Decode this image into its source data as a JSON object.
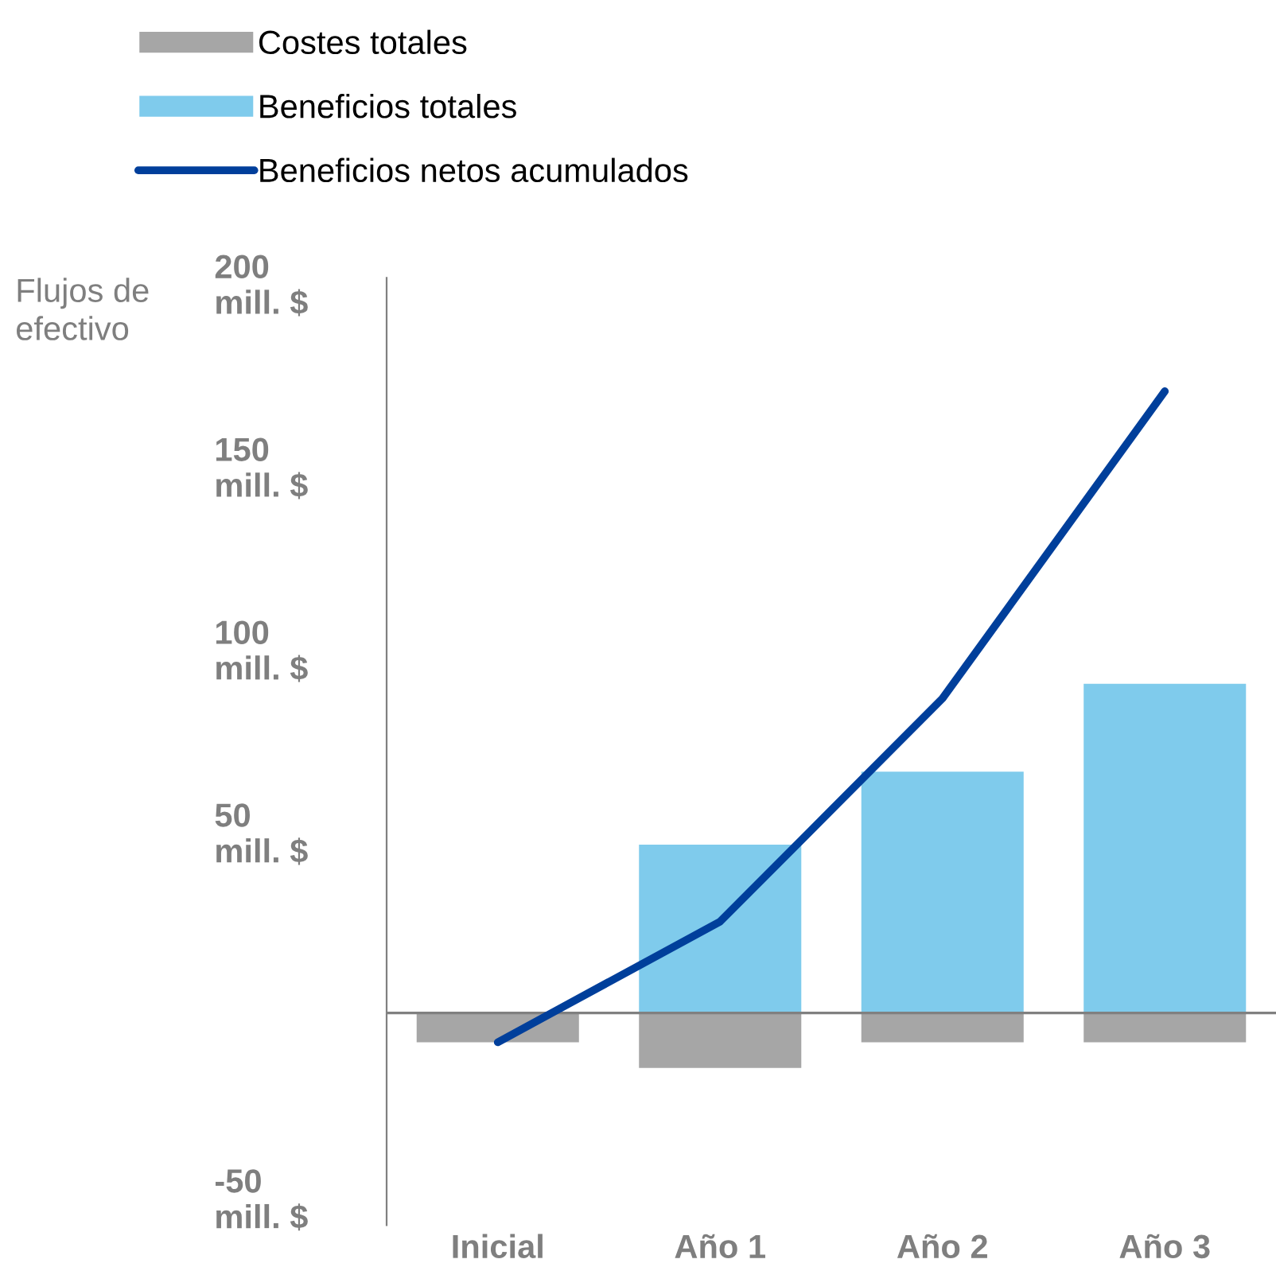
{
  "chart_data": {
    "type": "bar",
    "ylabel": "Flujos de\nefectivo",
    "categories": [
      "Inicial",
      "Año 1",
      "Año 2",
      "Año 3"
    ],
    "series": [
      {
        "name": "Costes totales",
        "color": "#a6a6a6",
        "values": [
          -8,
          -15,
          -8,
          -8
        ]
      },
      {
        "name": "Beneficios totales",
        "color": "#7fcbec",
        "values": [
          null,
          46,
          66,
          90
        ]
      },
      {
        "name": "Beneficios netos acumulados",
        "type": "line",
        "color": "#003f9b",
        "values": [
          -8,
          25,
          86,
          170
        ]
      }
    ],
    "ylim": [
      -58,
      201
    ],
    "yticks": [
      {
        "value": -50,
        "label": "-50\nmill. $"
      },
      {
        "value": 50,
        "label": "50\nmill. $"
      },
      {
        "value": 100,
        "label": "100\nmill. $"
      },
      {
        "value": 150,
        "label": "150\nmill. $"
      },
      {
        "value": 200,
        "label": "200\nmill. $"
      }
    ],
    "ref_lines": [
      {
        "axis": "y",
        "value": 0,
        "color": "#808080"
      }
    ],
    "legend": "top left",
    "grid": false,
    "stacked": true
  }
}
